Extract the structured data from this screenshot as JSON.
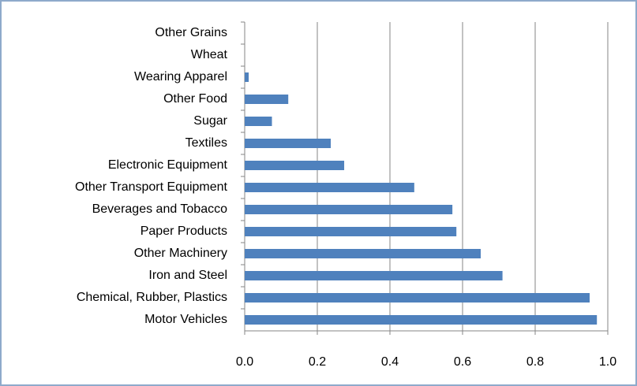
{
  "chart_data": {
    "type": "bar",
    "orientation": "horizontal",
    "categories": [
      "Other Grains",
      "Wheat",
      "Wearing Apparel",
      "Other Food",
      "Sugar",
      "Textiles",
      "Electronic Equipment",
      "Other Transport Equipment",
      "Beverages and Tobacco",
      "Paper Products",
      "Other Machinery",
      "Iron and Steel",
      "Chemical, Rubber, Plastics",
      "Motor Vehicles"
    ],
    "values": [
      0,
      0,
      0.011,
      0.12,
      0.075,
      0.237,
      0.274,
      0.467,
      0.572,
      0.583,
      0.65,
      0.71,
      0.95,
      0.97
    ],
    "color": "#4f81bd",
    "xlim": [
      0,
      1
    ],
    "xticks": [
      {
        "value": 0,
        "label": "0.0"
      },
      0.2,
      0.4,
      0.6,
      0.8,
      {
        "value": 1,
        "label": "1.0"
      }
    ],
    "grid": true
  }
}
